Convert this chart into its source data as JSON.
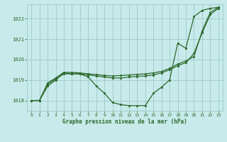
{
  "background_color": "#c8eaea",
  "grid_color": "#a0c8c8",
  "line_color": "#2d6a2d",
  "title": "Graphe pression niveau de la mer (hPa)",
  "ylim": [
    1017.5,
    1022.7
  ],
  "xlim": [
    -0.5,
    23.5
  ],
  "yticks": [
    1018,
    1019,
    1020,
    1021,
    1022
  ],
  "xticks": [
    0,
    1,
    2,
    3,
    4,
    5,
    6,
    7,
    8,
    9,
    10,
    11,
    12,
    13,
    14,
    15,
    16,
    17,
    18,
    19,
    20,
    21,
    22,
    23
  ],
  "series1_x": [
    0,
    1,
    2,
    3,
    4,
    5,
    6,
    7,
    8,
    9,
    10,
    11,
    12,
    13,
    14,
    15,
    16,
    17,
    18,
    19,
    20,
    21,
    22,
    23
  ],
  "series1_y": [
    1018.0,
    1018.0,
    1018.7,
    1019.0,
    1019.35,
    1019.3,
    1019.3,
    1019.15,
    1018.7,
    1018.35,
    1017.9,
    1017.8,
    1017.75,
    1017.75,
    1017.75,
    1018.35,
    1018.65,
    1019.0,
    1020.8,
    1020.55,
    1022.1,
    1022.4,
    1022.5,
    1022.55
  ],
  "series2_x": [
    0,
    1,
    2,
    3,
    4,
    5,
    6,
    7,
    8,
    9,
    10,
    11,
    12,
    13,
    14,
    15,
    16,
    17,
    18,
    19,
    20,
    21,
    22,
    23
  ],
  "series2_y": [
    1018.0,
    1018.0,
    1018.8,
    1019.05,
    1019.3,
    1019.3,
    1019.3,
    1019.25,
    1019.2,
    1019.15,
    1019.1,
    1019.1,
    1019.15,
    1019.18,
    1019.2,
    1019.25,
    1019.35,
    1019.5,
    1019.7,
    1019.85,
    1020.3,
    1021.3,
    1022.2,
    1022.5
  ],
  "series3_x": [
    0,
    1,
    2,
    3,
    4,
    5,
    6,
    7,
    8,
    9,
    10,
    11,
    12,
    13,
    14,
    15,
    16,
    17,
    18,
    19,
    20,
    21,
    22,
    23
  ],
  "series3_y": [
    1018.0,
    1018.0,
    1018.85,
    1019.1,
    1019.38,
    1019.37,
    1019.35,
    1019.3,
    1019.27,
    1019.22,
    1019.2,
    1019.22,
    1019.25,
    1019.28,
    1019.3,
    1019.35,
    1019.42,
    1019.57,
    1019.78,
    1019.93,
    1020.15,
    1021.4,
    1022.3,
    1022.55
  ]
}
